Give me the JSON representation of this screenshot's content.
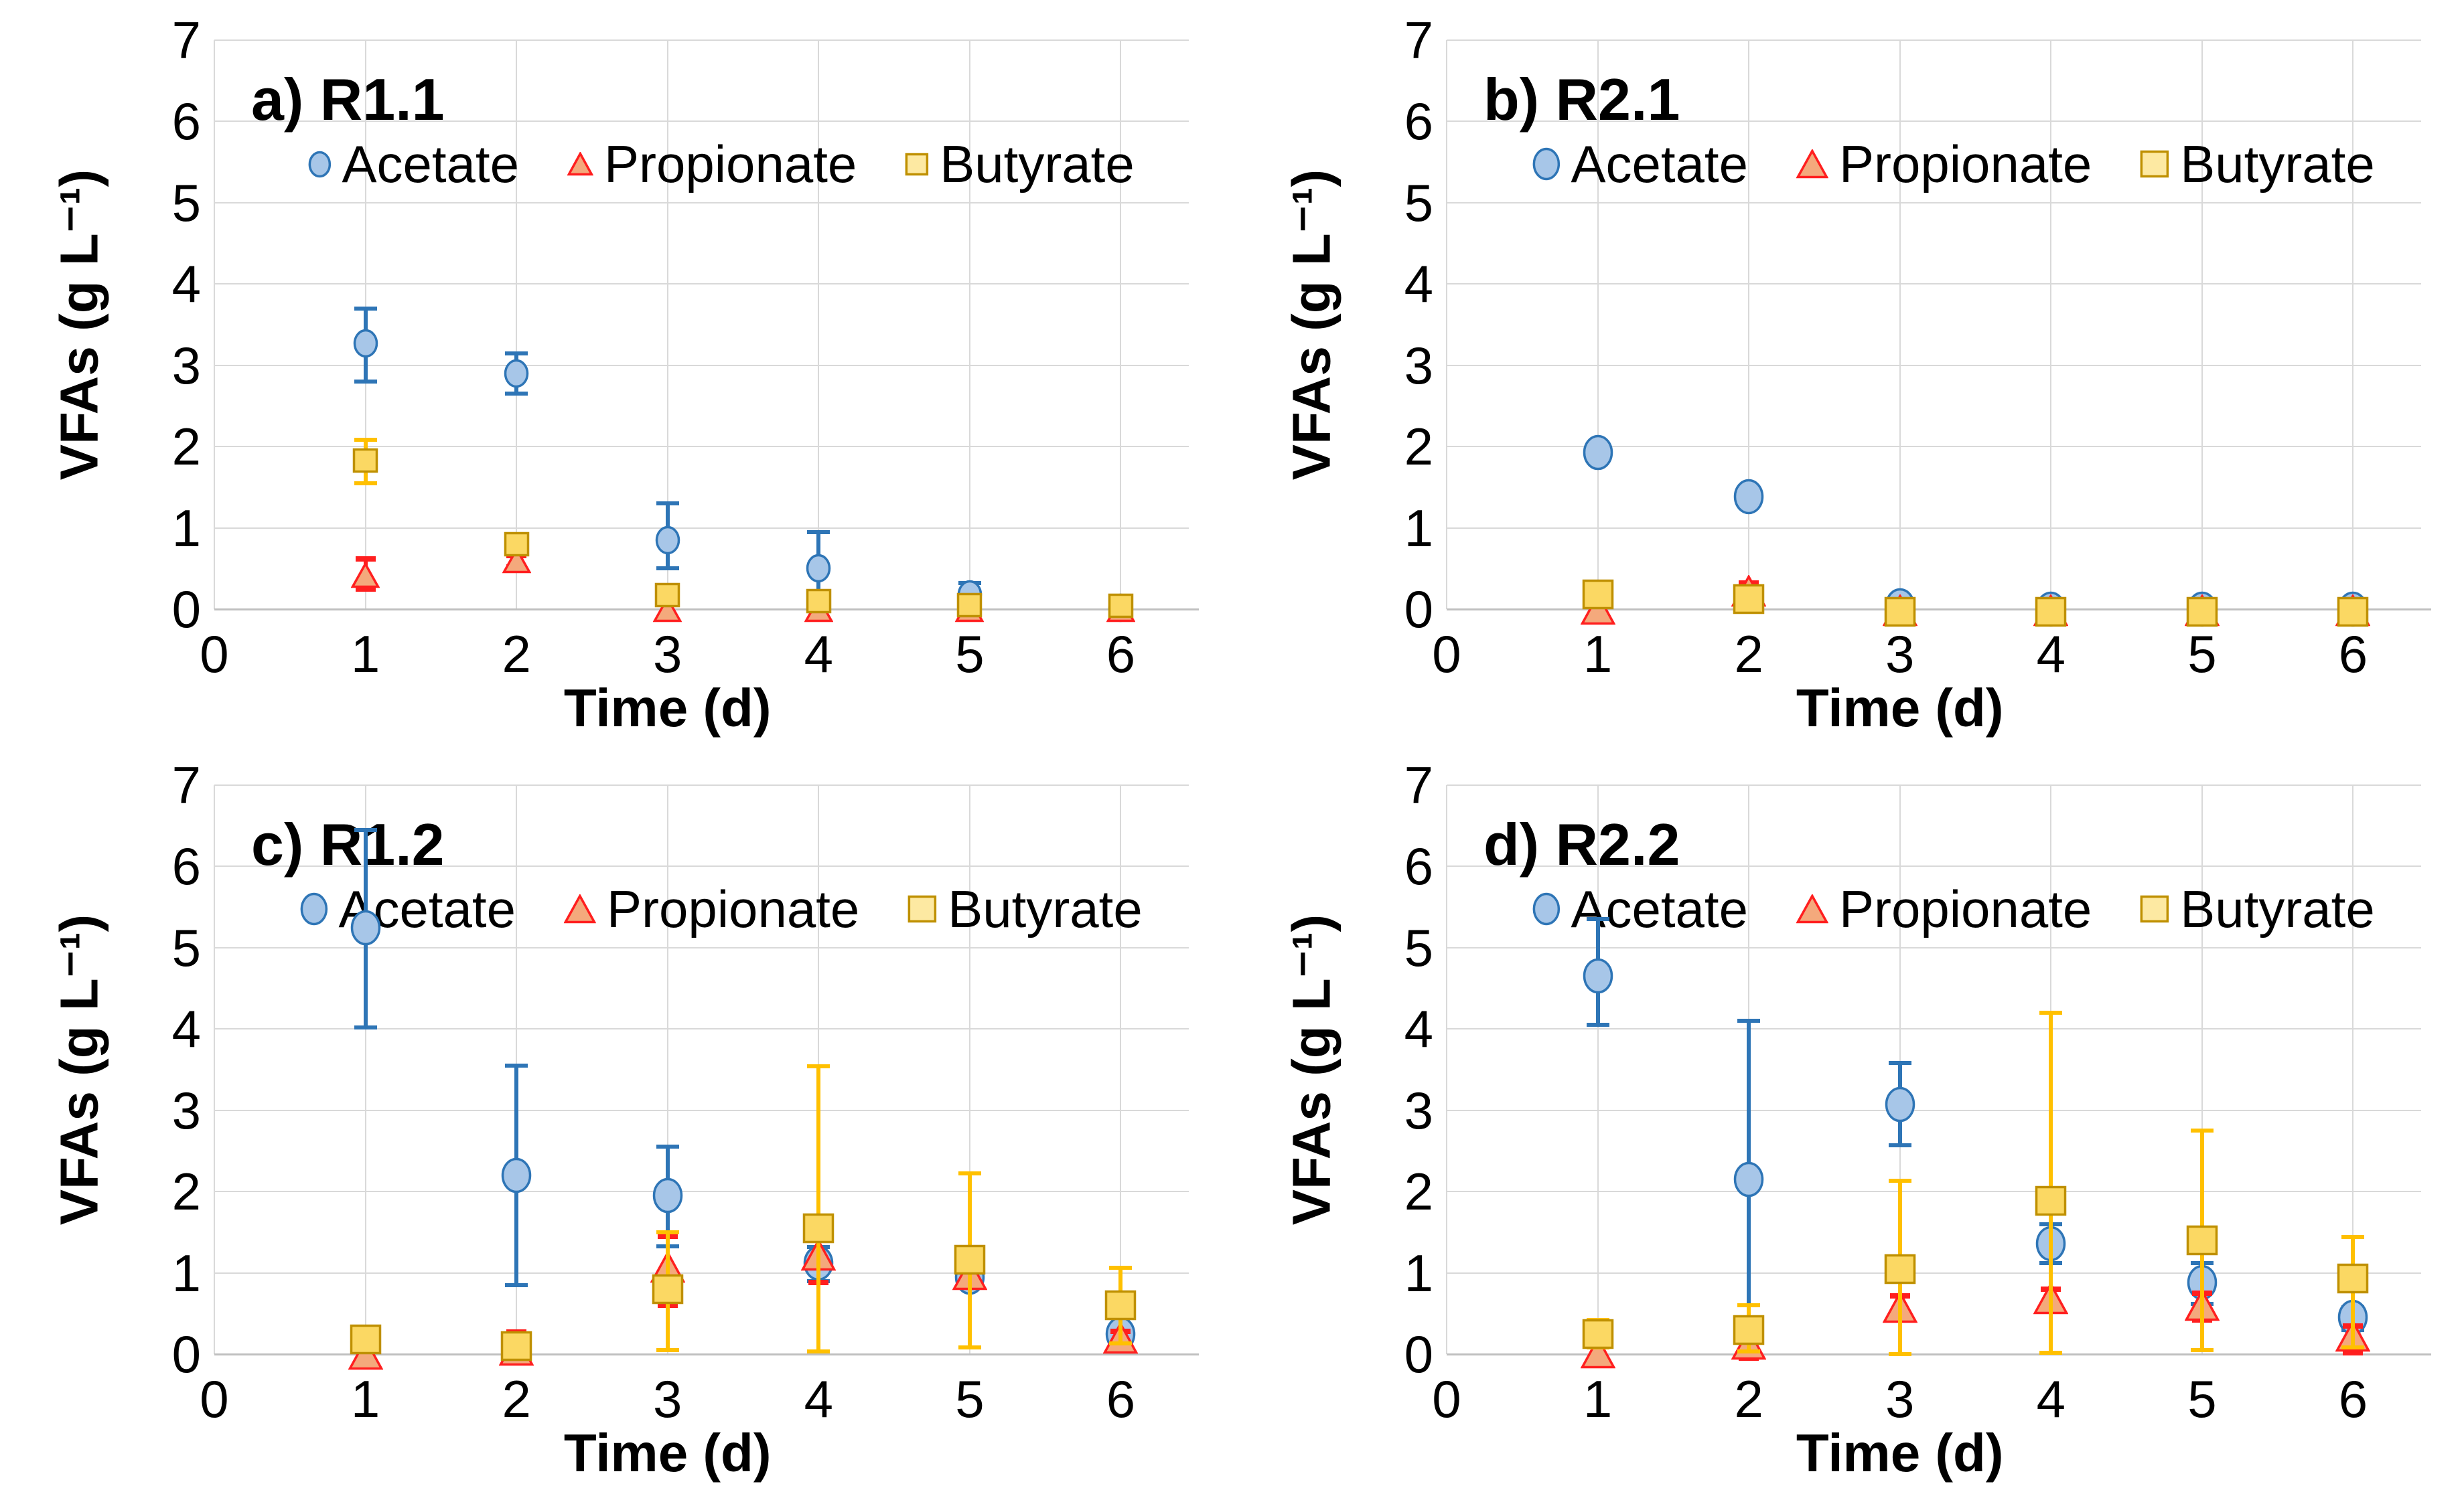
{
  "figure": {
    "xlabel": "Time (d)",
    "ylabel": "VFAs (g L⁻¹)",
    "yticks": [
      7,
      6,
      5,
      4,
      3,
      2,
      1,
      0
    ],
    "xticks": [
      0,
      1,
      2,
      3,
      4,
      5,
      6
    ],
    "ylim": [
      0,
      7
    ],
    "xlim": [
      0,
      6.45
    ],
    "grid": "on",
    "legend_position": "inside-top",
    "colors": {
      "acetate_fill": "#a7c6e8",
      "acetate_stroke": "#2e75b6",
      "propionate_fill": "#f4a97c",
      "propionate_stroke": "#ff1f1f",
      "butyrate_fill": "#fbd863",
      "butyrate_legend_fill": "#fde9a2",
      "butyrate_stroke": "#bf9000",
      "butyrate_errorbar": "#ffc000",
      "gridline": "#d9d9d9",
      "axis_line": "#bfbfbf",
      "text": "#000000"
    }
  },
  "chart_data": [
    {
      "type": "scatter",
      "panel_id": "a",
      "title": "a) R1.1",
      "x": [
        1,
        2,
        3,
        4,
        5,
        6
      ],
      "marker_scale": 0.82,
      "series": [
        {
          "name": "Acetate",
          "marker": "circle",
          "values": [
            3.27,
            2.9,
            0.85,
            0.5,
            0.18,
            0.02
          ],
          "err_lo": [
            2.8,
            2.65,
            0.5,
            0.12,
            0.05,
            0.02
          ],
          "err_hi": [
            3.7,
            3.15,
            1.3,
            0.95,
            0.32,
            0.02
          ]
        },
        {
          "name": "Propionate",
          "marker": "triangle",
          "values": [
            0.42,
            0.6,
            0.0,
            0.0,
            0.0,
            0.0
          ],
          "err_lo": [
            0.25,
            0.52,
            -0.1,
            -0.1,
            -0.1,
            -0.1
          ],
          "err_hi": [
            0.62,
            0.66,
            0.0,
            0.0,
            0.0,
            0.0
          ]
        },
        {
          "name": "Butyrate",
          "marker": "square",
          "values": [
            1.83,
            0.8,
            0.17,
            0.1,
            0.05,
            0.04
          ],
          "err_lo": [
            1.55,
            0.72,
            0.17,
            0.1,
            0.05,
            0.04
          ],
          "err_hi": [
            2.08,
            0.88,
            0.17,
            0.1,
            0.05,
            0.04
          ]
        }
      ]
    },
    {
      "type": "scatter",
      "panel_id": "b",
      "title": "b) R2.1",
      "x": [
        1,
        2,
        3,
        4,
        5,
        6
      ],
      "marker_scale": 1.0,
      "series": [
        {
          "name": "Acetate",
          "marker": "circle",
          "values": [
            1.93,
            1.38,
            0.04,
            0.0,
            0.0,
            0.0
          ],
          "err_lo": [
            1.93,
            1.38,
            0.04,
            0.0,
            0.0,
            0.0
          ],
          "err_hi": [
            1.93,
            1.38,
            0.04,
            0.0,
            0.0,
            0.0
          ]
        },
        {
          "name": "Propionate",
          "marker": "triangle",
          "values": [
            0.0,
            0.22,
            -0.02,
            -0.02,
            -0.02,
            -0.02
          ],
          "err_lo": [
            -0.1,
            0.1,
            -0.13,
            -0.13,
            -0.13,
            -0.13
          ],
          "err_hi": [
            0.0,
            0.32,
            -0.02,
            -0.02,
            -0.02,
            -0.02
          ]
        },
        {
          "name": "Butyrate",
          "marker": "square",
          "values": [
            0.18,
            0.12,
            -0.03,
            -0.03,
            -0.03,
            -0.03
          ],
          "err_lo": [
            0.18,
            0.12,
            -0.03,
            -0.03,
            -0.03,
            -0.03
          ],
          "err_hi": [
            0.18,
            0.12,
            -0.03,
            -0.03,
            -0.03,
            -0.03
          ]
        }
      ]
    },
    {
      "type": "scatter",
      "panel_id": "c",
      "title": "c) R1.2",
      "x": [
        1,
        2,
        3,
        4,
        5,
        6
      ],
      "marker_scale": 1.0,
      "series": [
        {
          "name": "Acetate",
          "marker": "circle",
          "values": [
            5.25,
            2.2,
            1.95,
            1.12,
            0.95,
            0.25
          ],
          "err_lo": [
            4.02,
            0.85,
            1.33,
            0.9,
            0.88,
            0.18
          ],
          "err_hi": [
            6.45,
            3.55,
            2.55,
            1.32,
            1.02,
            0.32
          ]
        },
        {
          "name": "Propionate",
          "marker": "triangle",
          "values": [
            0.0,
            0.05,
            1.07,
            1.22,
            0.98,
            0.2
          ],
          "err_lo": [
            -0.08,
            -0.05,
            0.6,
            0.88,
            0.85,
            0.12
          ],
          "err_hi": [
            0.0,
            0.27,
            1.45,
            1.5,
            1.1,
            0.28
          ]
        },
        {
          "name": "Butyrate",
          "marker": "square",
          "values": [
            0.18,
            0.1,
            0.8,
            1.55,
            1.16,
            0.6
          ],
          "err_lo": [
            0.05,
            0.0,
            0.05,
            0.03,
            0.08,
            0.13
          ],
          "err_hi": [
            0.31,
            0.2,
            1.5,
            3.54,
            2.22,
            1.06
          ]
        }
      ]
    },
    {
      "type": "scatter",
      "panel_id": "d",
      "title": "d) R2.2",
      "x": [
        1,
        2,
        3,
        4,
        5,
        6
      ],
      "marker_scale": 1.0,
      "series": [
        {
          "name": "Acetate",
          "marker": "circle",
          "values": [
            4.65,
            2.15,
            3.07,
            1.36,
            0.88,
            0.45
          ],
          "err_lo": [
            4.05,
            0.6,
            2.57,
            1.12,
            0.62,
            0.3
          ],
          "err_hi": [
            5.35,
            4.1,
            3.58,
            1.6,
            1.12,
            0.58
          ]
        },
        {
          "name": "Propionate",
          "marker": "triangle",
          "values": [
            0.02,
            0.12,
            0.58,
            0.68,
            0.6,
            0.22
          ],
          "err_lo": [
            -0.08,
            -0.05,
            0.42,
            0.55,
            0.42,
            0.02
          ],
          "err_hi": [
            0.02,
            0.3,
            0.72,
            0.8,
            0.75,
            0.35
          ]
        },
        {
          "name": "Butyrate",
          "marker": "square",
          "values": [
            0.25,
            0.3,
            1.05,
            1.89,
            1.4,
            0.93
          ],
          "err_lo": [
            0.08,
            0.03,
            0.0,
            0.02,
            0.05,
            0.08
          ],
          "err_hi": [
            0.42,
            0.6,
            2.13,
            4.2,
            2.75,
            1.44
          ]
        }
      ]
    }
  ]
}
